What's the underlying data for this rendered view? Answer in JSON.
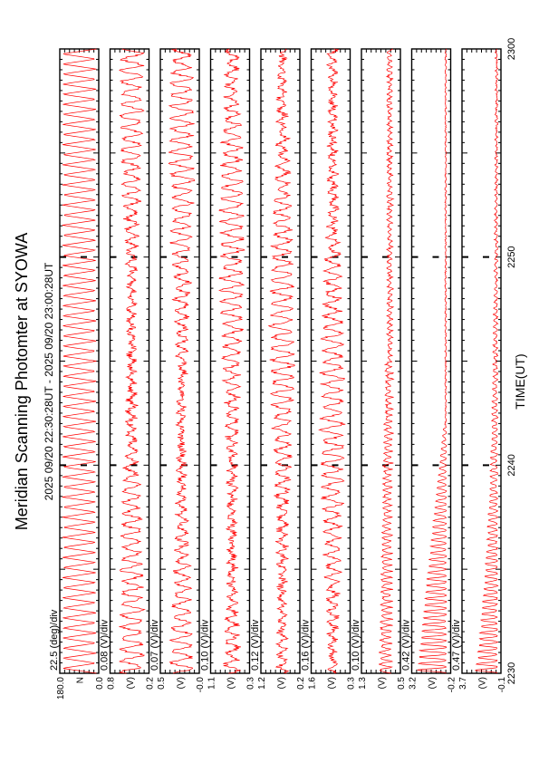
{
  "title": "Meridian Scanning Photomter at SYOWA",
  "subtitle": "2025 09/20 22:30:28UT - 2025 09/20 23:00:28UT",
  "xlabel": "TIME(UT)",
  "colors": {
    "trace": "#ff0000",
    "axis": "#000000",
    "background": "#ffffff"
  },
  "chart_data": [
    {
      "type": "line",
      "panel": 1,
      "ylabel": "N",
      "scale": "22.5 (deg)/div",
      "ticks": [
        "180.0",
        "0.0"
      ],
      "xlim": [
        "22:30",
        "23:00"
      ],
      "x_ticks": [
        "2230",
        "2240",
        "2250",
        "2300"
      ],
      "pattern": "sawtooth",
      "approx_range": [
        0,
        180
      ]
    },
    {
      "type": "line",
      "panel": 2,
      "ylabel": "(V)",
      "scale": "0.08 (V)/div",
      "ticks": [
        "0.8",
        "0.2"
      ],
      "xlim": [
        "22:30",
        "23:00"
      ],
      "x_ticks": [
        "2230",
        "2240",
        "2250",
        "2300"
      ],
      "pattern": "oscillation",
      "approx_range": [
        0.2,
        0.8
      ]
    },
    {
      "type": "line",
      "panel": 3,
      "ylabel": "(V)",
      "scale": "0.07 (V)/div",
      "ticks": [
        "0.5",
        "-0.0"
      ],
      "xlim": [
        "22:30",
        "23:00"
      ],
      "x_ticks": [
        "2230",
        "2240",
        "2250",
        "2300"
      ],
      "pattern": "oscillation",
      "approx_range": [
        0.0,
        0.5
      ]
    },
    {
      "type": "line",
      "panel": 4,
      "ylabel": "(V)",
      "scale": "0.10 (V)/div",
      "ticks": [
        "1.1",
        "0.3"
      ],
      "xlim": [
        "22:30",
        "23:00"
      ],
      "x_ticks": [
        "2230",
        "2240",
        "2250",
        "2300"
      ],
      "pattern": "oscillation",
      "approx_range": [
        0.3,
        1.1
      ]
    },
    {
      "type": "line",
      "panel": 5,
      "ylabel": "(V)",
      "scale": "0.12 (V)/div",
      "ticks": [
        "1.2",
        "0.2"
      ],
      "xlim": [
        "22:30",
        "23:00"
      ],
      "x_ticks": [
        "2230",
        "2240",
        "2250",
        "2300"
      ],
      "pattern": "oscillation",
      "approx_range": [
        0.2,
        1.2
      ]
    },
    {
      "type": "line",
      "panel": 6,
      "ylabel": "(V)",
      "scale": "0.16 (V)/div",
      "ticks": [
        "1.6",
        "0.3"
      ],
      "xlim": [
        "22:30",
        "23:00"
      ],
      "x_ticks": [
        "2230",
        "2240",
        "2250",
        "2300"
      ],
      "pattern": "oscillation",
      "approx_range": [
        0.3,
        1.6
      ]
    },
    {
      "type": "line",
      "panel": 7,
      "ylabel": "(V)",
      "scale": "0.10 (V)/div",
      "ticks": [
        "1.3",
        "0.5"
      ],
      "xlim": [
        "22:30",
        "23:00"
      ],
      "x_ticks": [
        "2230",
        "2240",
        "2250",
        "2300"
      ],
      "pattern": "spiky",
      "approx_range": [
        0.5,
        1.3
      ]
    },
    {
      "type": "line",
      "panel": 8,
      "ylabel": "(V)",
      "scale": "0.42 (V)/div",
      "ticks": [
        "3.2",
        "-0.2"
      ],
      "xlim": [
        "22:30",
        "23:00"
      ],
      "x_ticks": [
        "2230",
        "2240",
        "2250",
        "2300"
      ],
      "pattern": "spiky-early",
      "approx_range": [
        -0.2,
        3.2
      ]
    },
    {
      "type": "line",
      "panel": 9,
      "ylabel": "(V)",
      "scale": "0.47 (V)/div",
      "ticks": [
        "3.7",
        "-0.1"
      ],
      "xlim": [
        "22:30",
        "23:00"
      ],
      "x_ticks": [
        "2230",
        "2240",
        "2250",
        "2300"
      ],
      "pattern": "decaying",
      "approx_range": [
        -0.1,
        3.7
      ]
    }
  ]
}
